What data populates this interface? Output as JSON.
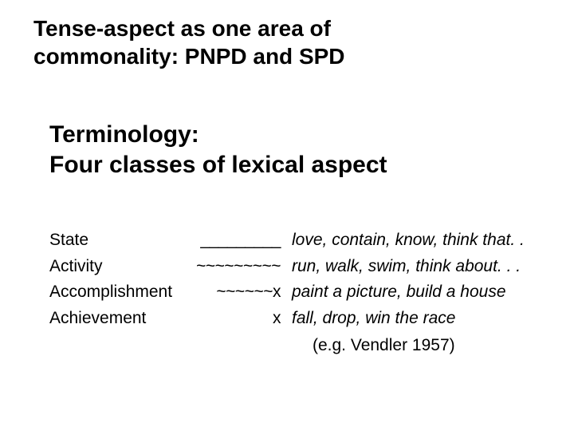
{
  "colors": {
    "background": "#ffffff",
    "text": "#000000"
  },
  "typography": {
    "family": "Arial",
    "title_fontsize": 28,
    "subtitle_fontsize": 30,
    "body_fontsize": 21,
    "title_weight": "bold",
    "subtitle_weight": "bold"
  },
  "title": {
    "line1": "Tense-aspect as one area of",
    "line2": "commonality: PNPD and SPD"
  },
  "subtitle": {
    "line1": "Terminology:",
    "line2": "Four classes of lexical aspect"
  },
  "rows": [
    {
      "label": "State",
      "symbol": "_________",
      "examples": "love, contain, know, think that. ."
    },
    {
      "label": "Activity",
      "symbol": "~~~~~~~~~",
      "examples": "run, walk, swim, think about. . ."
    },
    {
      "label": "Accomplishment",
      "symbol": "~~~~~~x",
      "examples": "paint a picture, build a house"
    },
    {
      "label": "Achievement",
      "symbol": "x",
      "examples": "fall, drop, win the race"
    }
  ],
  "citation": "(e.g. Vendler 1957)"
}
